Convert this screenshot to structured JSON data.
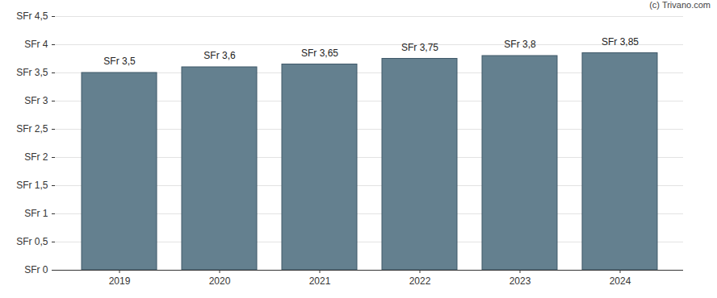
{
  "chart_data": {
    "type": "bar",
    "annotation": "(c) Trivano.com",
    "categories": [
      "2019",
      "2020",
      "2021",
      "2022",
      "2023",
      "2024"
    ],
    "values": [
      3.5,
      3.6,
      3.65,
      3.75,
      3.8,
      3.85
    ],
    "value_labels": [
      "SFr 3,5",
      "SFr 3,6",
      "SFr 3,65",
      "SFr 3,75",
      "SFr 3,8",
      "SFr 3,85"
    ],
    "data_labels": true,
    "color": "#64808f",
    "ylim": [
      0,
      4.5
    ],
    "yticks": [
      {
        "value": 0,
        "label": "SFr 0"
      },
      {
        "value": 0.5,
        "label": "SFr 0,5"
      },
      {
        "value": 1,
        "label": "SFr 1"
      },
      {
        "value": 1.5,
        "label": "SFr 1,5"
      },
      {
        "value": 2,
        "label": "SFr 2"
      },
      {
        "value": 2.5,
        "label": "SFr 2,5"
      },
      {
        "value": 3,
        "label": "SFr 3"
      },
      {
        "value": 3.5,
        "label": "SFr 3,5"
      },
      {
        "value": 4,
        "label": "SFr 4"
      },
      {
        "value": 4.5,
        "label": "SFr 4,5"
      }
    ],
    "grid": true
  }
}
